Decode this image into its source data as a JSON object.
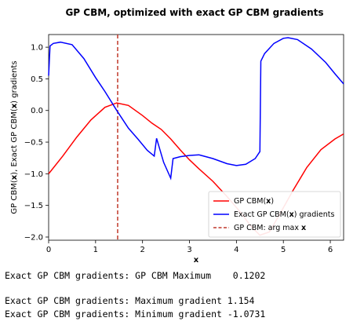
{
  "chart_data": {
    "type": "line",
    "title": "GP CBM, optimized with exact GP CBM gradients",
    "xlabel": "x",
    "ylabel": "GP CBM(x), Exact GP CBM(x) gradients",
    "xlim": [
      0,
      6.2832
    ],
    "ylim": [
      -2.05,
      1.2
    ],
    "xticks": [
      "0",
      "1",
      "2",
      "3",
      "4",
      "5",
      "6"
    ],
    "yticks": [
      "1.0",
      "0.5",
      "0.0",
      "−0.5",
      "−1.0",
      "−1.5",
      "−2.0"
    ],
    "grid": false,
    "legend_position": "lower-right",
    "series": [
      {
        "name": "GP CBM(x)",
        "color": "#ff0000",
        "style": "solid",
        "x": [
          0.0,
          0.3,
          0.6,
          0.9,
          1.2,
          1.45,
          1.7,
          2.0,
          2.2,
          2.4,
          2.6,
          2.8,
          3.0,
          3.2,
          3.5,
          3.8,
          4.1,
          4.3,
          4.5,
          4.7,
          4.9,
          5.2,
          5.5,
          5.8,
          6.1,
          6.2832
        ],
        "y": [
          -1.0,
          -0.72,
          -0.42,
          -0.15,
          0.05,
          0.12,
          0.08,
          -0.08,
          -0.2,
          -0.3,
          -0.45,
          -0.62,
          -0.78,
          -0.92,
          -1.12,
          -1.36,
          -1.62,
          -1.82,
          -1.97,
          -1.92,
          -1.67,
          -1.27,
          -0.9,
          -0.62,
          -0.45,
          -0.37
        ]
      },
      {
        "name": "Exact GP CBM(x) gradients",
        "color": "#0000ff",
        "style": "solid",
        "x": [
          0.0,
          0.03,
          0.1,
          0.25,
          0.5,
          0.75,
          1.0,
          1.2,
          1.45,
          1.7,
          1.9,
          2.1,
          2.25,
          2.3,
          2.45,
          2.6,
          2.65,
          2.8,
          3.0,
          3.2,
          3.5,
          3.8,
          4.0,
          4.2,
          4.4,
          4.5,
          4.52,
          4.6,
          4.8,
          5.0,
          5.1,
          5.3,
          5.6,
          5.9,
          6.1,
          6.2832
        ],
        "y": [
          0.55,
          1.02,
          1.06,
          1.08,
          1.04,
          0.82,
          0.52,
          0.3,
          0.0,
          -0.28,
          -0.45,
          -0.63,
          -0.72,
          -0.44,
          -0.82,
          -1.07,
          -0.76,
          -0.73,
          -0.71,
          -0.7,
          -0.76,
          -0.84,
          -0.87,
          -0.85,
          -0.76,
          -0.65,
          0.78,
          0.9,
          1.06,
          1.14,
          1.15,
          1.12,
          0.97,
          0.76,
          0.58,
          0.42
        ]
      }
    ],
    "vline": {
      "name": "GP CBM: arg max x",
      "x": 1.47,
      "color": "#c0392b",
      "style": "dashed"
    }
  },
  "legend": {
    "gp_cbm_pre": "GP CBM(",
    "gp_cbm_x": "x",
    "gp_cbm_post": ")",
    "grad_pre": "Exact GP CBM(",
    "grad_x": "x",
    "grad_post": ") gradients",
    "argmax_pre": "GP CBM: arg max ",
    "argmax_x": "x"
  },
  "ylabel_parts": {
    "p1": "GP CBM(",
    "x1": "x",
    "p2": "), Exact GP CBM(",
    "x2": "x",
    "p3": ") gradients"
  },
  "output_lines": [
    "Exact GP CBM gradients: GP CBM Maximum    0.1202",
    "",
    "Exact GP CBM gradients: Maximum gradient 1.154",
    "Exact GP CBM gradients: Minimum gradient -1.0731"
  ]
}
